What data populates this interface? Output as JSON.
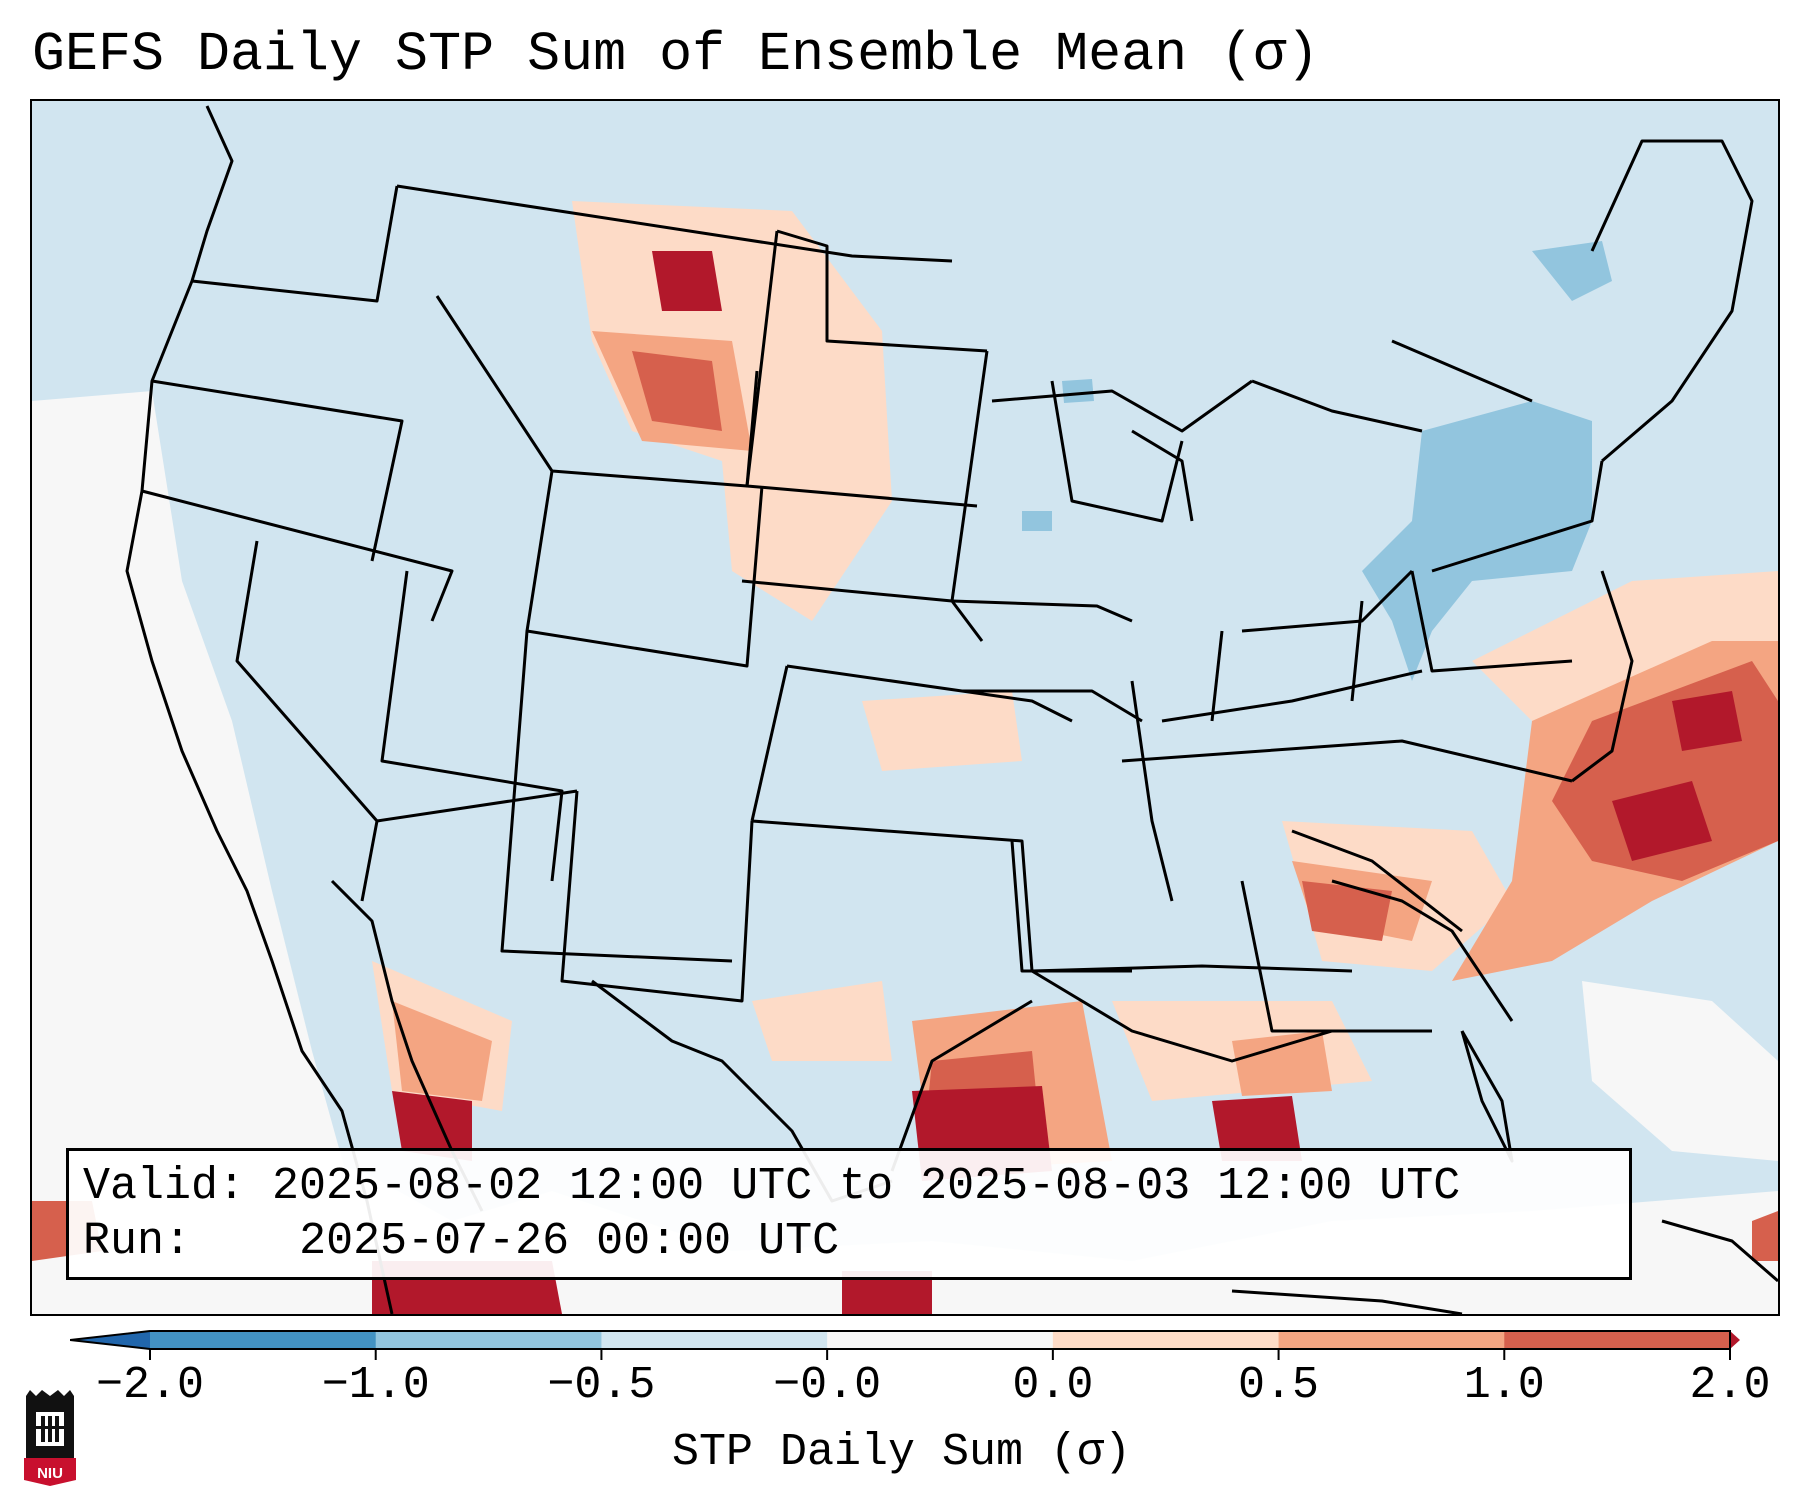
{
  "title": "GEFS Daily STP Sum of Ensemble Mean (σ)",
  "info": {
    "valid_label": "Valid:",
    "valid_value": "2025-08-02 12:00 UTC to 2025-08-03 12:00 UTC",
    "run_label": "Run:",
    "run_value": "2025-07-26 00:00 UTC"
  },
  "colorbar": {
    "label": "STP Daily Sum (σ)",
    "ticks": [
      "−2.0",
      "−1.0",
      "−0.5",
      "−0.0",
      "0.0",
      "0.5",
      "1.0",
      "2.0"
    ],
    "colors": [
      "#2166ac",
      "#4393c3",
      "#92c5de",
      "#d1e5f0",
      "#f7f7f7",
      "#fddbc7",
      "#f4a582",
      "#d6604d",
      "#b2182b"
    ]
  },
  "logo": {
    "text": "NIU",
    "icon": "niu-logo-icon"
  },
  "map": {
    "region": "Continental United States",
    "background_color": "#d1e5f0",
    "icon": "conus-map-icon"
  }
}
